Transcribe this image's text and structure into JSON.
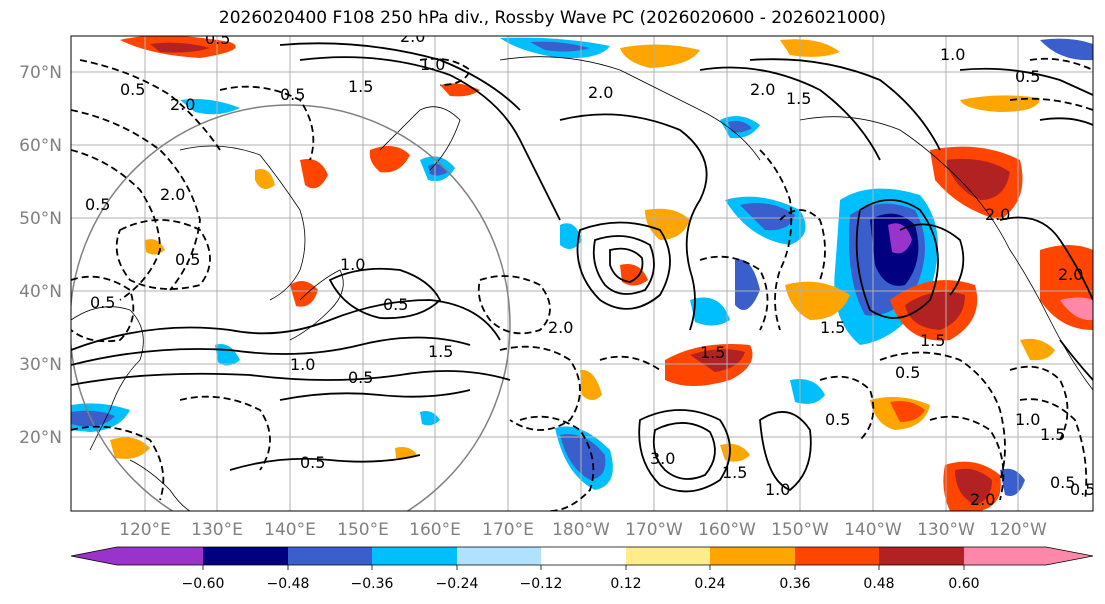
{
  "title": "2026020400 F108 250 hPa div., Rossby Wave PC (2026020600 - 2026021000)",
  "latitude_labels": [
    "70°N",
    "60°N",
    "50°N",
    "40°N",
    "30°N",
    "20°N"
  ],
  "longitude_labels": [
    "120°E",
    "130°E",
    "140°E",
    "150°E",
    "160°E",
    "170°E",
    "180°W",
    "170°W",
    "160°W",
    "150°W",
    "140°W",
    "130°W",
    "120°W"
  ],
  "colorbar": {
    "colors": [
      "#9933cc",
      "#000080",
      "#3a5fcd",
      "#00bfff",
      "#b0e2ff",
      "#ffffff",
      "#ffec8b",
      "#ffa500",
      "#ff4500",
      "#b22222",
      "#ff88aa"
    ],
    "tick_labels": [
      "−0.60",
      "−0.48",
      "−0.36",
      "−0.24",
      "−0.12",
      "0.12",
      "0.24",
      "0.36",
      "0.48",
      "0.60"
    ]
  },
  "contour_labels": [
    "0.5",
    "2.0",
    "2.0",
    "1.5",
    "2.0",
    "1.0",
    "0.5",
    "0.5",
    "2.0",
    "0.5",
    "1.0",
    "0.5",
    "1.5",
    "0.5",
    "0.5",
    "1.5",
    "1.0",
    "2.0",
    "2.0",
    "1.0",
    "1.5",
    "0.5",
    "0.5",
    "3.0",
    "1.5",
    "1.0",
    "0.5",
    "1.5",
    "2.0",
    "1.5",
    "0.5",
    "1.0",
    "0.5",
    "0.5",
    "2.0",
    "1.5",
    "2.0",
    "0.5"
  ]
}
